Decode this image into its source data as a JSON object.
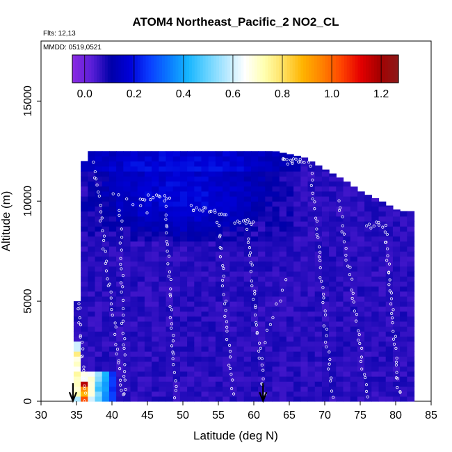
{
  "chart_data": {
    "type": "heatmap",
    "title": "ATOM4 Northeast_Pacific_2 NO2_CL",
    "flights_note": "Flts: 12,13",
    "date_note": "MMDD: 0519,0521",
    "xlabel": "Latitude (deg N)",
    "ylabel": "Altitude (m)",
    "xlim": [
      30,
      85
    ],
    "ylim": [
      0,
      18000
    ],
    "x_ticks": [
      "30",
      "35",
      "40",
      "45",
      "50",
      "55",
      "60",
      "65",
      "70",
      "75",
      "80",
      "85"
    ],
    "y_ticks": [
      "0",
      "5000",
      "10000",
      "15000"
    ],
    "colorbar": {
      "range": [
        -0.05,
        1.27
      ],
      "ticks": [
        "0.0",
        "0.2",
        "0.4",
        "0.6",
        "0.8",
        "1.0",
        "1.2"
      ],
      "colors": [
        "#8a2be2",
        "#5b1fd8",
        "#0000a8",
        "#0000d8",
        "#0a3cff",
        "#0a78ff",
        "#14b4ff",
        "#64d2ff",
        "#b4e8ff",
        "#ffffff",
        "#ffffb0",
        "#ffe060",
        "#ffb400",
        "#ff8200",
        "#ff4600",
        "#e60000",
        "#a50000",
        "#8c1a1a"
      ]
    },
    "profile_markers": [
      34.5,
      61.3
    ],
    "domain_top_m": {
      "lat": [
        36.5,
        41.0,
        45.0,
        50.0,
        55.0,
        60.0,
        63.0,
        67.0,
        70.0,
        73.0,
        75.0,
        78.0,
        80.5,
        82.0
      ],
      "alt": [
        12500,
        12500,
        12500,
        12500,
        12500,
        12500,
        12500,
        12200,
        11600,
        11000,
        10500,
        10000,
        9500,
        9500
      ]
    },
    "field_description": "background NO2 ~0.05-0.1 (purple), lower values ~0.15 (dark blue) aloft 8000-12500 m between 36-66 N, elevated 0.4-1.2 near surface at 35-40 N"
  }
}
